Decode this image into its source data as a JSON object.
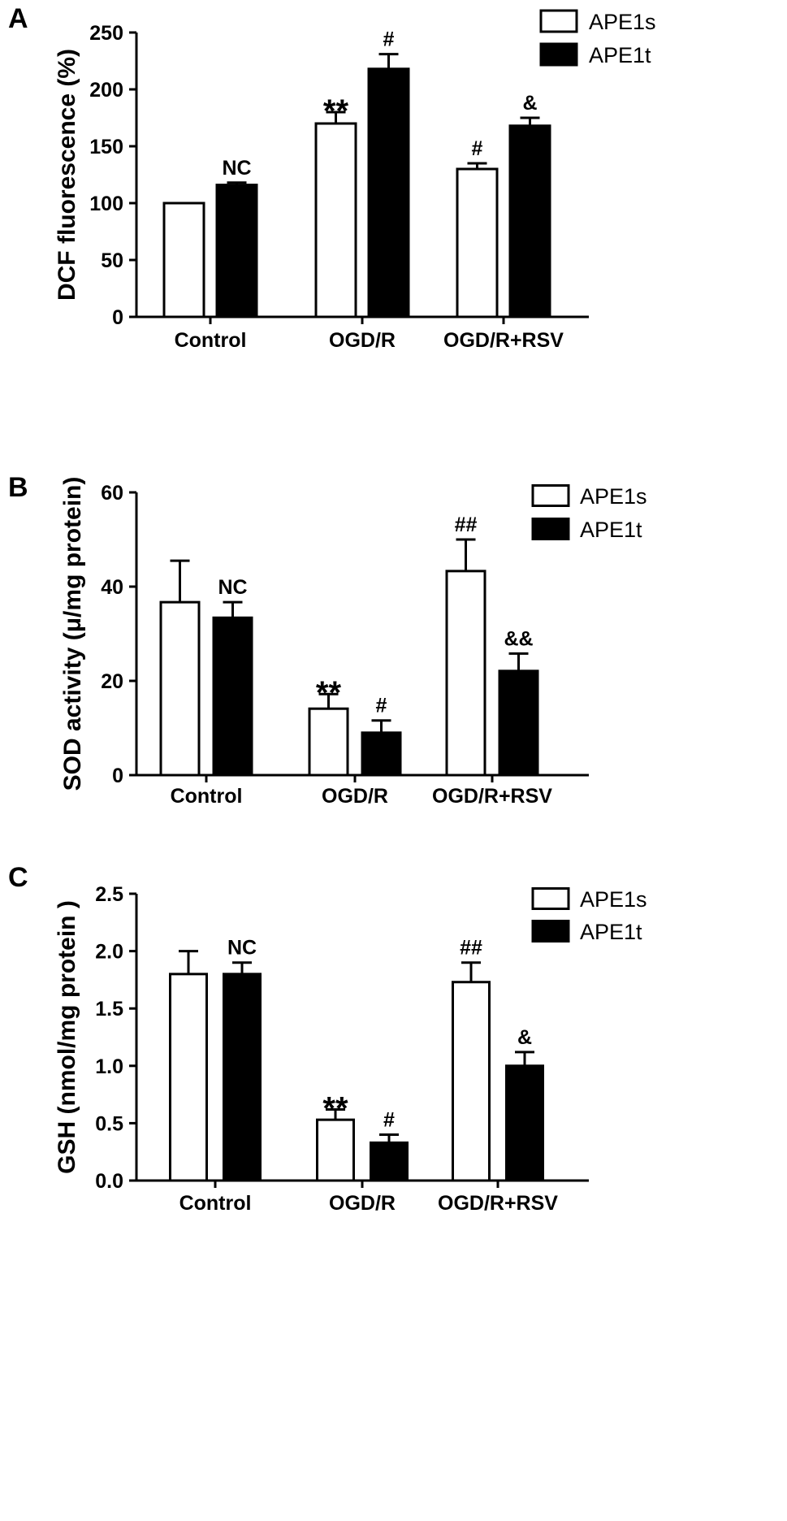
{
  "chart_data": [
    {
      "type": "bar",
      "panel": "A",
      "title": "",
      "xlabel": "",
      "ylabel": "DCF fluorescence (%)",
      "ylim": [
        0,
        250
      ],
      "yticks": [
        "0",
        "50",
        "100",
        "150",
        "200",
        "250"
      ],
      "categories": [
        "Control",
        "OGD/R",
        "OGD/R+RSV"
      ],
      "legend": {
        "position": "top-right"
      },
      "series": [
        {
          "name": "APE1s",
          "fill": "#ffffff",
          "values": [
            100,
            170,
            130
          ],
          "errors": [
            0,
            10,
            5
          ],
          "annotations": [
            "",
            "**",
            "#"
          ]
        },
        {
          "name": "APE1t",
          "fill": "#000000",
          "values": [
            116,
            218,
            168
          ],
          "errors": [
            2,
            13,
            7
          ],
          "annotations": [
            "NC",
            "#",
            "&"
          ]
        }
      ]
    },
    {
      "type": "bar",
      "panel": "B",
      "title": "",
      "xlabel": "",
      "ylabel": "SOD activity (μ/mg protein)",
      "ylim": [
        0,
        60
      ],
      "yticks": [
        "0",
        "20",
        "40",
        "60"
      ],
      "categories": [
        "Control",
        "OGD/R",
        "OGD/R+RSV"
      ],
      "legend": {
        "position": "top-right"
      },
      "series": [
        {
          "name": "APE1s",
          "fill": "#ffffff",
          "values": [
            36.7,
            14.1,
            43.3
          ],
          "errors": [
            8.8,
            3.1,
            6.7
          ],
          "annotations": [
            "",
            "**",
            "##"
          ]
        },
        {
          "name": "APE1t",
          "fill": "#000000",
          "values": [
            33.4,
            9.0,
            22.1
          ],
          "errors": [
            3.3,
            2.6,
            3.7
          ],
          "annotations": [
            "NC",
            "#",
            "&&"
          ]
        }
      ]
    },
    {
      "type": "bar",
      "panel": "C",
      "title": "",
      "xlabel": "",
      "ylabel": "GSH (nmol/mg protein )",
      "ylim": [
        0,
        2.5
      ],
      "yticks": [
        "0.0",
        "0.5",
        "1.0",
        "1.5",
        "2.0",
        "2.5"
      ],
      "categories": [
        "Control",
        "OGD/R",
        "OGD/R+RSV"
      ],
      "legend": {
        "position": "top-right"
      },
      "series": [
        {
          "name": "APE1s",
          "fill": "#ffffff",
          "values": [
            1.8,
            0.53,
            1.73
          ],
          "errors": [
            0.2,
            0.09,
            0.17
          ],
          "annotations": [
            "",
            "**",
            "##"
          ]
        },
        {
          "name": "APE1t",
          "fill": "#000000",
          "values": [
            1.8,
            0.33,
            1.0
          ],
          "errors": [
            0.1,
            0.07,
            0.12
          ],
          "annotations": [
            "NC",
            "#",
            "&"
          ]
        }
      ]
    }
  ]
}
